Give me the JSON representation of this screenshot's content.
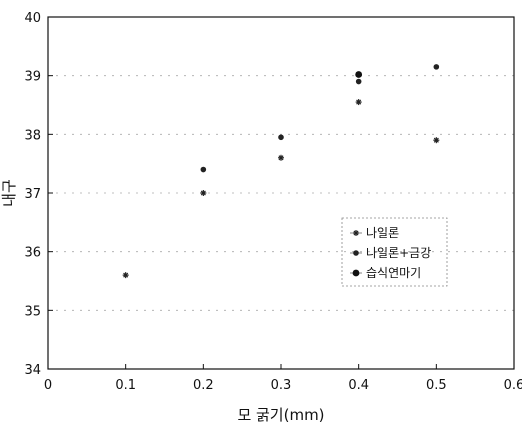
{
  "chart_data": {
    "type": "scatter",
    "title": "",
    "xlabel": "모 굵기(mm)",
    "ylabel": "내구",
    "xlim": [
      0,
      0.6
    ],
    "ylim": [
      34,
      40
    ],
    "xticks": [
      "0",
      "0.1",
      "0.2",
      "0.3",
      "0.4",
      "0.5",
      "0.6"
    ],
    "yticks": [
      "34",
      "35",
      "36",
      "37",
      "38",
      "39",
      "40"
    ],
    "grid": "dotted horizontal",
    "legend_position": "right-center",
    "series": [
      {
        "name": "나일론",
        "marker": "asterisk",
        "points": [
          [
            0.1,
            35.6
          ],
          [
            0.2,
            37.0
          ],
          [
            0.3,
            37.6
          ],
          [
            0.4,
            38.55
          ],
          [
            0.5,
            37.9
          ]
        ]
      },
      {
        "name": "나일론+금강",
        "marker": "circle",
        "points": [
          [
            0.2,
            37.4
          ],
          [
            0.3,
            37.95
          ],
          [
            0.4,
            38.9
          ],
          [
            0.5,
            39.15
          ]
        ]
      },
      {
        "name": "습식연마기",
        "marker": "dot",
        "points": [
          [
            0.4,
            39.02
          ]
        ]
      }
    ]
  }
}
